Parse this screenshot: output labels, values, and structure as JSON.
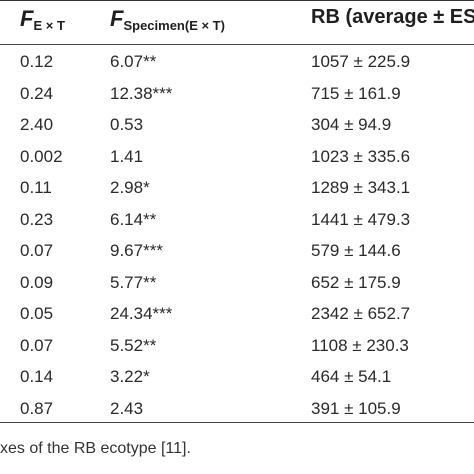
{
  "table": {
    "headers": {
      "col1_symbol": "F",
      "col1_sub": "E × T",
      "col2_symbol": "F",
      "col2_sub": "Specimen(E × T)",
      "col3": "RB (average ± ES)"
    },
    "rows": [
      {
        "f_ext": "0.12",
        "f_specimen": "6.07**",
        "rb": "1057 ± 225.9"
      },
      {
        "f_ext": "0.24",
        "f_specimen": "12.38***",
        "rb": "715 ± 161.9"
      },
      {
        "f_ext": "2.40",
        "f_specimen": "0.53",
        "rb": "304 ± 94.9"
      },
      {
        "f_ext": "0.002",
        "f_specimen": "1.41",
        "rb": "1023 ± 335.6"
      },
      {
        "f_ext": "0.11",
        "f_specimen": "2.98*",
        "rb": "1289 ± 343.1"
      },
      {
        "f_ext": "0.23",
        "f_specimen": "6.14**",
        "rb": "1441 ± 479.3"
      },
      {
        "f_ext": "0.07",
        "f_specimen": "9.67***",
        "rb": "579 ± 144.6"
      },
      {
        "f_ext": "0.09",
        "f_specimen": "5.77**",
        "rb": "652 ± 175.9"
      },
      {
        "f_ext": "0.05",
        "f_specimen": "24.34***",
        "rb": "2342 ± 652.7"
      },
      {
        "f_ext": "0.07",
        "f_specimen": "5.52**",
        "rb": "1108 ± 230.3"
      },
      {
        "f_ext": "0.14",
        "f_specimen": "3.22*",
        "rb": "464 ± 54.1"
      },
      {
        "f_ext": "0.87",
        "f_specimen": "2.43",
        "rb": "391 ± 105.9"
      }
    ]
  },
  "footnote": "xes of the RB ecotype [11]."
}
